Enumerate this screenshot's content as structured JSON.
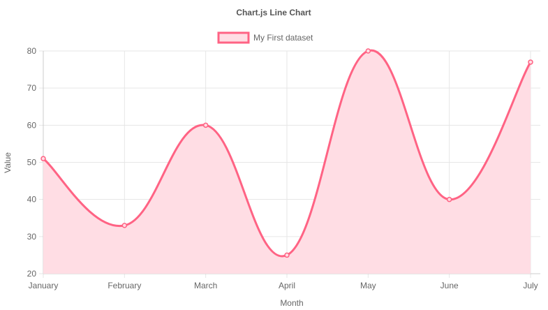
{
  "chart_data": {
    "type": "line",
    "title": "Chart.js Line Chart",
    "categories": [
      "January",
      "February",
      "March",
      "April",
      "May",
      "June",
      "July"
    ],
    "series": [
      {
        "name": "My First dataset",
        "values": [
          51,
          33,
          60,
          25,
          80,
          40,
          77
        ],
        "line_color": "#ff6384",
        "fill_color": "#ffdde4",
        "filled": true,
        "smooth": true
      }
    ],
    "xlabel": "Month",
    "ylabel": "Value",
    "ylim": [
      20,
      80
    ],
    "yticks": [
      20,
      30,
      40,
      50,
      60,
      70,
      80
    ],
    "grid": true,
    "legend_position": "top"
  }
}
